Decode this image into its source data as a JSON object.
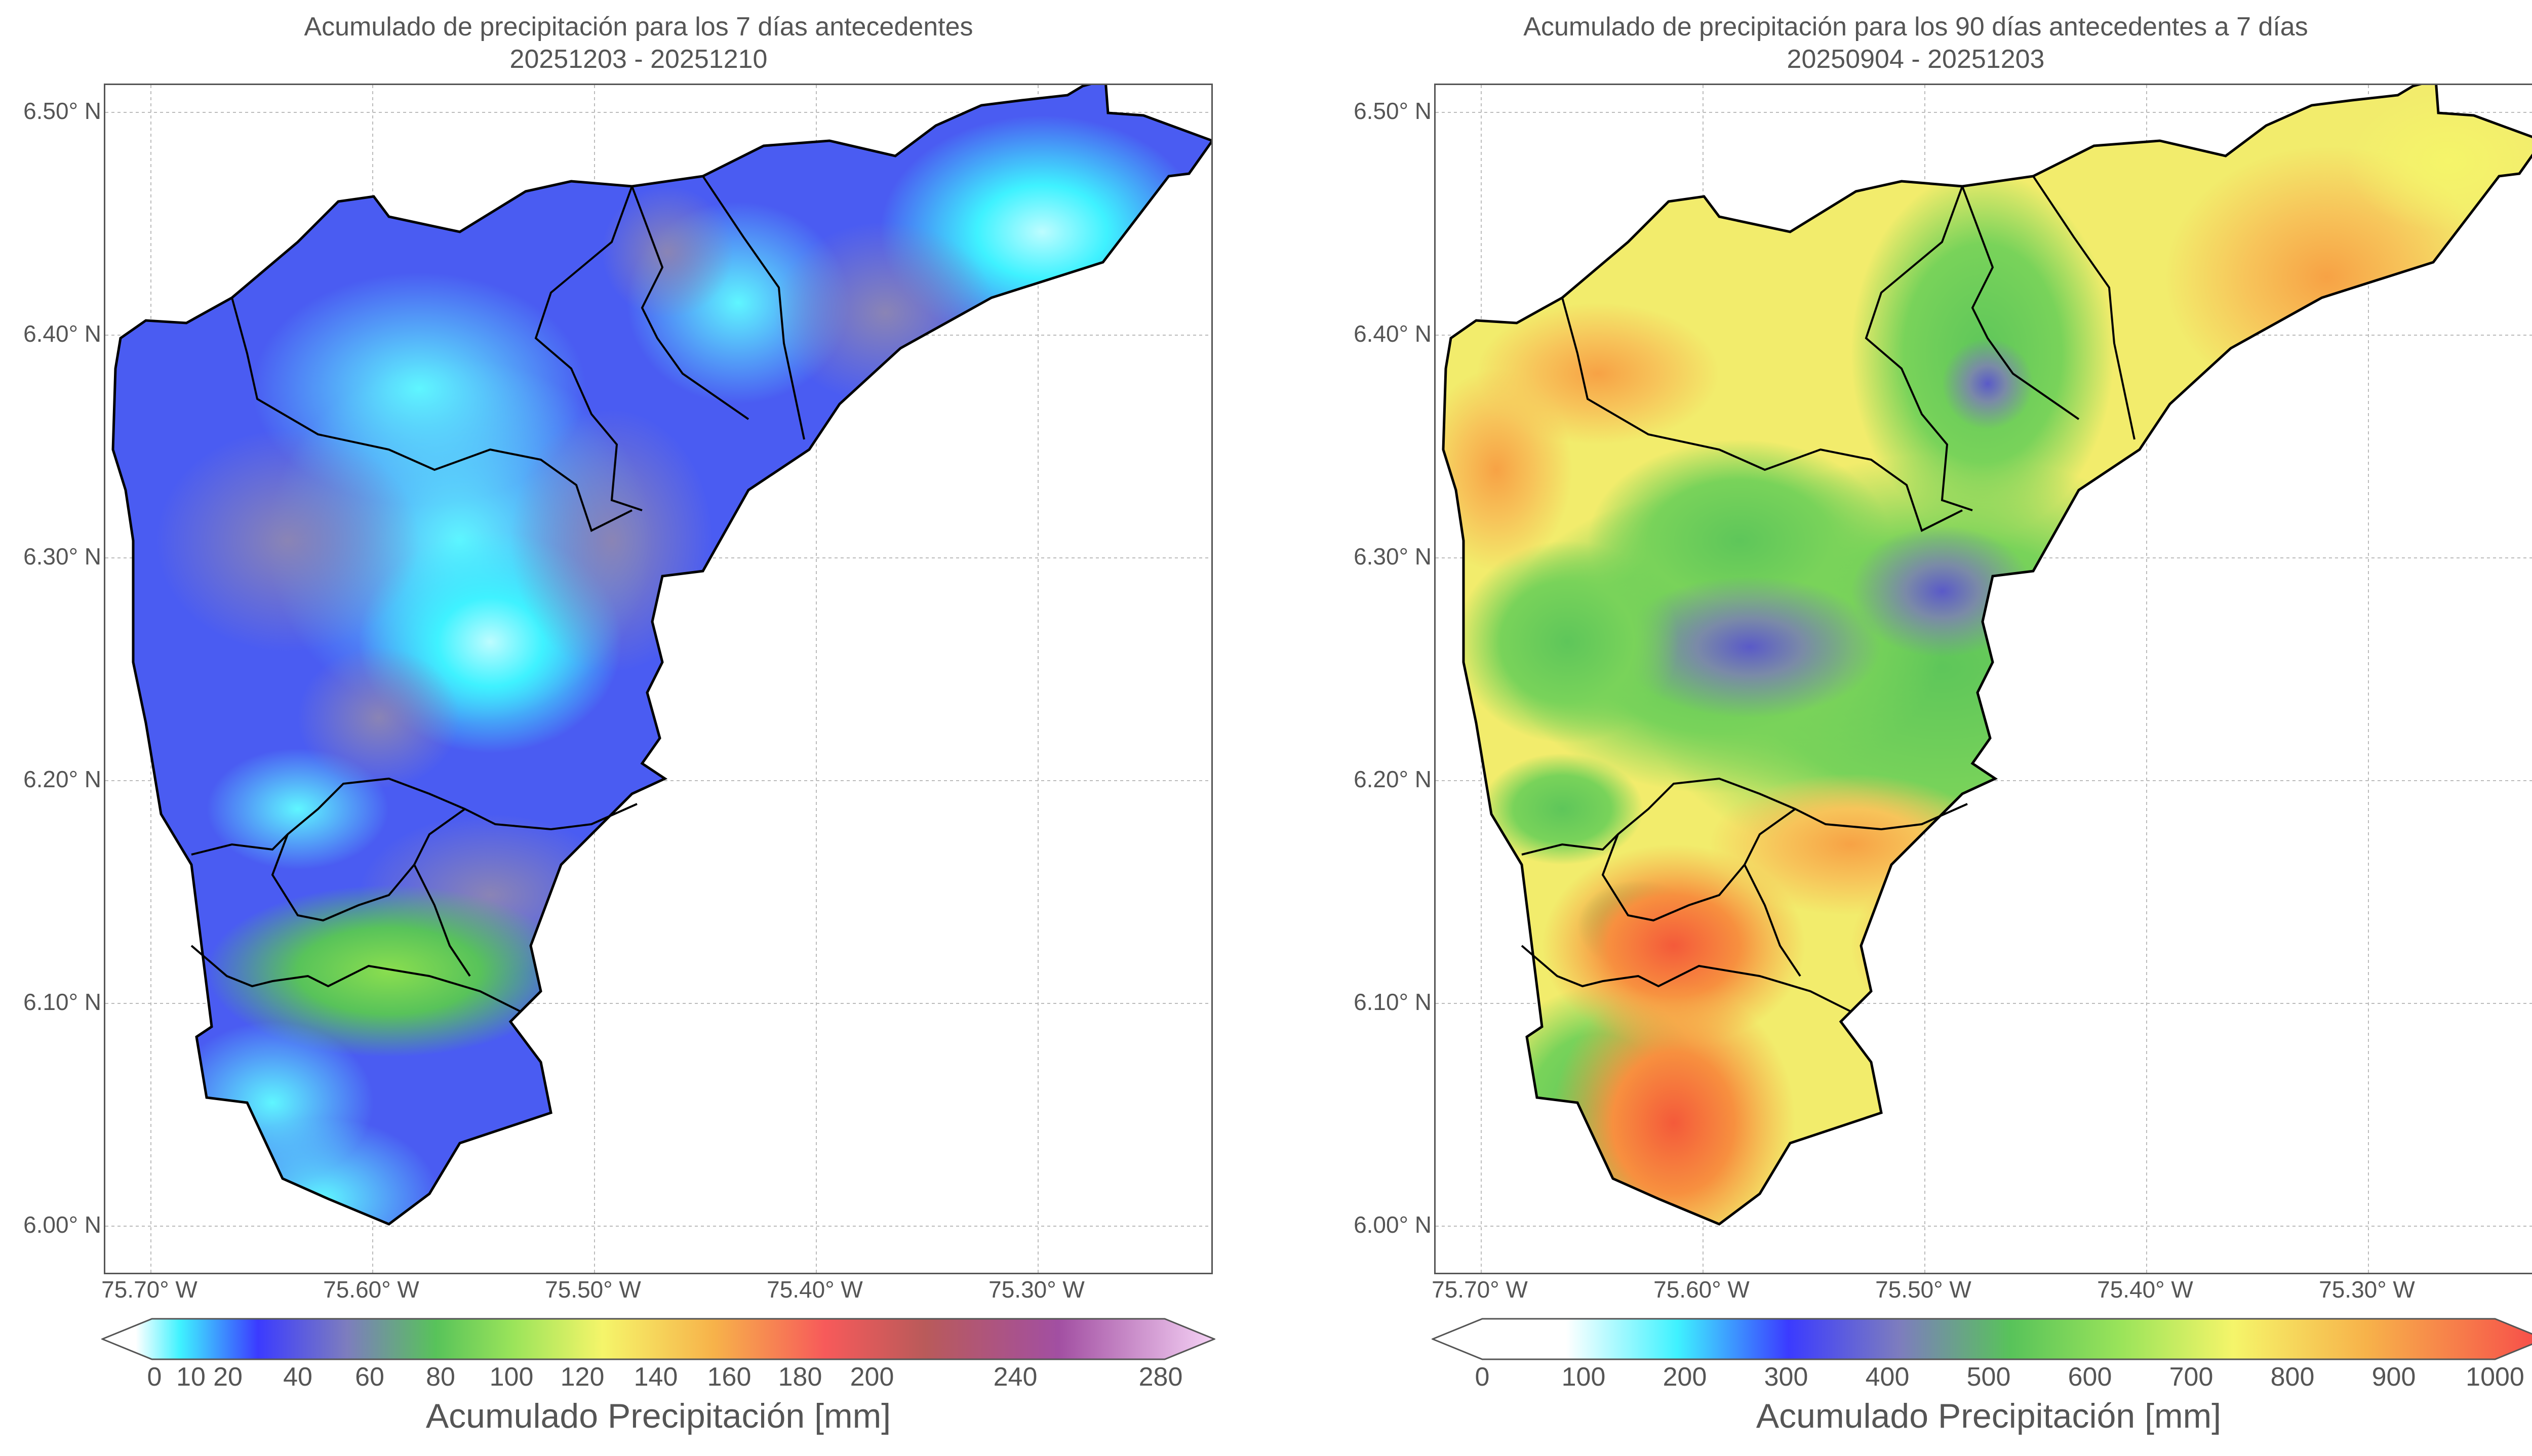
{
  "panels": [
    {
      "title_line1": "Acumulado de precipitación para los 7 días antecedentes",
      "title_line2": "20251203 - 20251210",
      "lat_labels": [
        "6.50° N",
        "6.40° N",
        "6.30° N",
        "6.20° N",
        "6.10° N",
        "6.00° N"
      ],
      "lon_labels": [
        "75.70° W",
        "75.60° W",
        "75.50° W",
        "75.40° W",
        "75.30° W"
      ],
      "colorbar_ticks": [
        "0",
        "10",
        "20",
        "40",
        "60",
        "80",
        "100",
        "120",
        "140",
        "160",
        "180",
        "200",
        "240",
        "280"
      ],
      "colorbar_label": "Acumulado Precipitación [mm]",
      "colors": [
        "#ffffff",
        "#3ff2ff",
        "#2f7dff",
        "#3b3bff",
        "#7d7dbe",
        "#58c35a",
        "#9be45a",
        "#f5f56a",
        "#f7b24a",
        "#f75a5a",
        "#b95a5a",
        "#a24fa2",
        "#f5d2f5"
      ]
    },
    {
      "title_line1": "Acumulado de precipitación para los 90 días antecedentes a 7 días",
      "title_line2": "20250904 - 20251203",
      "lat_labels": [
        "6.50° N",
        "6.40° N",
        "6.30° N",
        "6.20° N",
        "6.10° N",
        "6.00° N"
      ],
      "lon_labels": [
        "75.70° W",
        "75.60° W",
        "75.50° W",
        "75.40° W",
        "75.30° W"
      ],
      "colorbar_ticks": [
        "0",
        "100",
        "200",
        "300",
        "400",
        "500",
        "600",
        "700",
        "800",
        "900",
        "1000"
      ],
      "colorbar_label": "Acumulado Precipitación [mm]",
      "colors": [
        "#ffffff",
        "#3ff2ff",
        "#3b3bff",
        "#7d7dbe",
        "#58c35a",
        "#9be45a",
        "#f5f56a",
        "#f7b24a",
        "#f75a5a"
      ]
    }
  ]
}
